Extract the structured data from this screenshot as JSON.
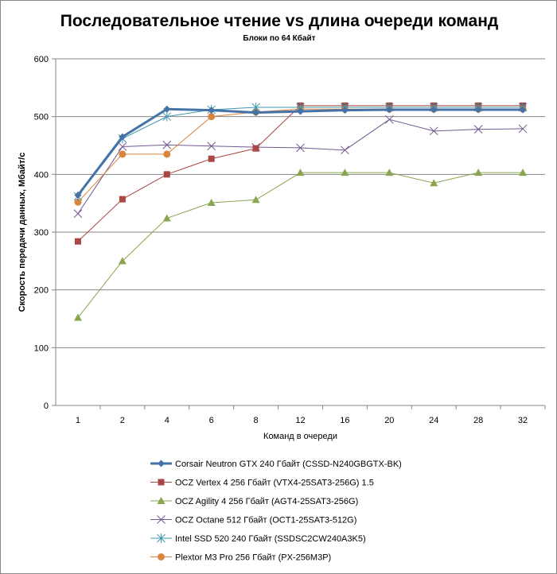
{
  "chart_data": {
    "type": "line",
    "title": "Последовательное чтение vs длина очереди команд",
    "subtitle": "Блоки  по 64 Кбайт",
    "xlabel": "Команд в очереди",
    "ylabel": "Скорость  передачи данных, Мбайт/с",
    "categories": [
      "1",
      "2",
      "4",
      "6",
      "8",
      "12",
      "16",
      "20",
      "24",
      "28",
      "32"
    ],
    "ylim": [
      0,
      600
    ],
    "yticks": [
      "0",
      "100",
      "200",
      "300",
      "400",
      "500",
      "600"
    ],
    "grid": true,
    "legend_position": "bottom",
    "series": [
      {
        "name": "Corsair Neutron GTX 240 Гбайт (CSSD-N240GBGTX-BK)",
        "color": "#4572A7",
        "marker": "diamond",
        "width": 3,
        "values": [
          364,
          465,
          513,
          511,
          507,
          509,
          511,
          512,
          512,
          512,
          512
        ]
      },
      {
        "name": "OCZ Vertex  4 256 Гбайт (VTX4-25SAT3-256G)  1.5",
        "color": "#AA4643",
        "marker": "square",
        "width": 1,
        "values": [
          284,
          357,
          400,
          427,
          445,
          519,
          519,
          519,
          519,
          519,
          519
        ]
      },
      {
        "name": "OCZ Agility 4 256 Гбайт (AGT4-25SAT3-256G)",
        "color": "#89A54E",
        "marker": "triangle",
        "width": 1,
        "values": [
          152,
          250,
          324,
          351,
          356,
          403,
          403,
          403,
          385,
          403,
          403
        ]
      },
      {
        "name": "OCZ Octane 512 Гбайт (OCT1-25SAT3-512G)",
        "color": "#71588F",
        "marker": "x",
        "width": 1,
        "values": [
          332,
          448,
          451,
          449,
          447,
          446,
          442,
          495,
          475,
          478,
          479
        ]
      },
      {
        "name": "Intel SSD 520 240 Гбайт (SSDSC2CW240A3K5)",
        "color": "#4198AF",
        "marker": "star",
        "width": 1,
        "values": [
          362,
          462,
          500,
          512,
          516,
          516,
          516,
          516,
          516,
          516,
          516
        ]
      },
      {
        "name": "Plextor M3 Pro 256 Гбайт (PX-256M3P)",
        "color": "#DB843D",
        "marker": "circle",
        "width": 1,
        "values": [
          352,
          435,
          435,
          500,
          508,
          513,
          513,
          513,
          513,
          513,
          513
        ]
      }
    ]
  }
}
